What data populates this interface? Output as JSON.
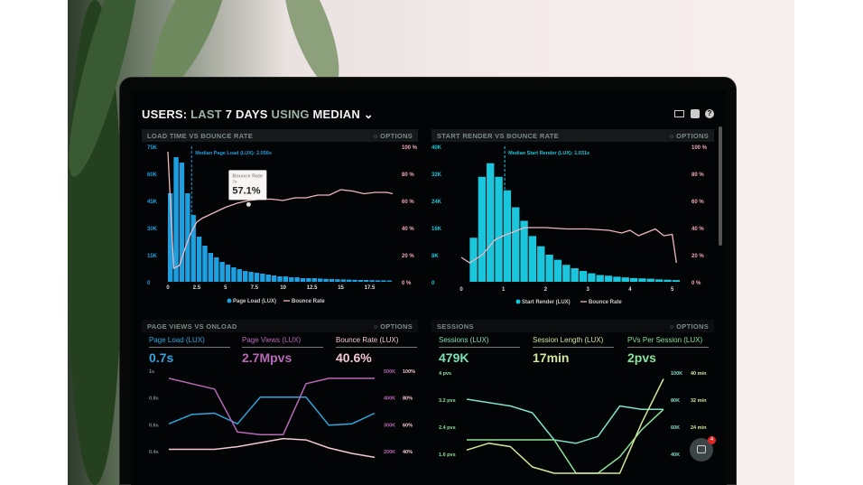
{
  "header": {
    "prefix": "USERS:",
    "last": "LAST",
    "days": "7 DAYS",
    "using": "USING",
    "metric": "MEDIAN",
    "icons": [
      "monitor-icon",
      "share-icon",
      "help-icon"
    ]
  },
  "panels": [
    {
      "title": "LOAD TIME VS BOUNCE RATE",
      "options": "OPTIONS"
    },
    {
      "title": "START RENDER VS BOUNCE RATE",
      "options": "OPTIONS"
    },
    {
      "title": "PAGE VIEWS VS ONLOAD",
      "options": "OPTIONS",
      "kpis": [
        {
          "label": "Page Load (LUX)",
          "value": "0.7s",
          "color": "#2fa6e0"
        },
        {
          "label": "Page Views (LUX)",
          "value": "2.7Mpvs",
          "color": "#b968b8"
        },
        {
          "label": "Bounce Rate (LUX)",
          "value": "40.6%",
          "color": "#f4c8d2"
        }
      ]
    },
    {
      "title": "SESSIONS",
      "options": "OPTIONS",
      "kpis": [
        {
          "label": "Sessions (LUX)",
          "value": "479K",
          "color": "#7fe0b8"
        },
        {
          "label": "Session Length (LUX)",
          "value": "17min",
          "color": "#d6e69a"
        },
        {
          "label": "PVs Per Session (LUX)",
          "value": "2pvs",
          "color": "#8ae39a"
        }
      ]
    }
  ],
  "chat": {
    "badge": "4"
  },
  "chart_data": [
    {
      "type": "bar",
      "title": "LOAD TIME VS BOUNCE RATE",
      "bar_color": "#1e9fe0",
      "line_color": "#f0b8c0",
      "xticks": [
        "0",
        "2.5",
        "5",
        "7.5",
        "10",
        "12.5",
        "15",
        "17.5"
      ],
      "xlim": [
        0,
        19.5
      ],
      "yticks_left": [
        "75K",
        "60K",
        "45K",
        "30K",
        "15K",
        "0"
      ],
      "ylim_left": [
        0,
        75
      ],
      "yticks_right": [
        "100 %",
        "80 %",
        "60 %",
        "40 %",
        "20 %",
        "0 %"
      ],
      "ylim_right": [
        0,
        100
      ],
      "bar_width": 0.5,
      "bars": [
        49,
        69,
        66,
        49,
        37,
        25,
        20,
        16,
        13.5,
        11,
        9.5,
        8,
        7,
        6,
        5.5,
        5,
        4.5,
        4,
        3.5,
        3,
        3,
        2.5,
        2.5,
        2,
        2,
        2,
        1.8,
        1.6,
        1.5,
        1.4,
        1.3,
        1.2,
        1.1,
        1,
        1,
        0.9,
        0.8,
        0.8,
        0.7
      ],
      "line": {
        "x": [
          0,
          0.5,
          1,
          1.5,
          2,
          2.5,
          3,
          4,
          5,
          6,
          7,
          8,
          9,
          10,
          11,
          12,
          13,
          14,
          15,
          16,
          17,
          18,
          19,
          19.5
        ],
        "y": [
          96,
          10,
          12,
          25,
          36,
          44,
          47,
          51,
          55,
          58,
          60,
          61,
          61,
          60,
          62,
          62,
          64,
          64,
          68,
          67,
          65,
          66,
          66,
          65
        ]
      },
      "median": {
        "x": 2.056,
        "label": "Median Page Load (LUX): 2.056s"
      },
      "tooltip": {
        "title": "Bounce Rate",
        "sub": "7s",
        "value": "57.1%",
        "x": 7,
        "y": 57.1
      },
      "legend": [
        "Page Load (LUX)",
        "Bounce Rate"
      ]
    },
    {
      "type": "bar",
      "title": "START RENDER VS BOUNCE RATE",
      "bar_color": "#19c6dc",
      "line_color": "#f0b8c0",
      "xticks": [
        "0",
        "1",
        "2",
        "3",
        "4",
        "5"
      ],
      "xlim": [
        0,
        5.2
      ],
      "yticks_left": [
        "40K",
        "32K",
        "24K",
        "16K",
        "8K",
        "0"
      ],
      "ylim_left": [
        0,
        40
      ],
      "yticks_right": [
        "100 %",
        "80 %",
        "60 %",
        "40 %",
        "20 %",
        "0 %"
      ],
      "ylim_right": [
        0,
        100
      ],
      "bar_width": 0.2,
      "bars": [
        0,
        13,
        31,
        35,
        31,
        27,
        22,
        18,
        13.5,
        10.5,
        8,
        6.5,
        5,
        4,
        3.2,
        2.5,
        2,
        1.8,
        1.5,
        1.3,
        1.1,
        1,
        0.9,
        0.7,
        0.6,
        0.5
      ],
      "line": {
        "x": [
          0,
          0.2,
          0.5,
          0.8,
          1,
          1.5,
          2,
          2.5,
          3,
          3.5,
          3.8,
          4,
          4.2,
          4.6,
          4.8,
          5,
          5.1
        ],
        "y": [
          18,
          14,
          20,
          31,
          34,
          40,
          40,
          39,
          39,
          38,
          36,
          38,
          34,
          39,
          34,
          35,
          14
        ]
      },
      "median": {
        "x": 1.031,
        "label": "Median Start Render (LUX): 1.031s"
      },
      "legend": [
        "Start Render (LUX)",
        "Bounce Rate"
      ]
    },
    {
      "type": "line",
      "title": "PAGE VIEWS VS ONLOAD",
      "yticks_left": [
        "1s",
        "0.8s",
        "0.6s",
        "0.4s"
      ],
      "ylim_left": [
        0.4,
        1
      ],
      "yticks_right_a": [
        "500K",
        "400K",
        "300K",
        "200K"
      ],
      "yticks_right_b": [
        "100%",
        "80%",
        "60%",
        "40%"
      ],
      "series": [
        {
          "name": "Page Load (LUX)",
          "color": "#2fa6e0",
          "axis": "s",
          "values": [
            0.6,
            0.67,
            0.68,
            0.6,
            0.8,
            0.8,
            0.8,
            0.59,
            0.6,
            0.68
          ]
        },
        {
          "name": "Page Views (LUX)",
          "color": "#b968b8",
          "axis": "K",
          "values": [
            470,
            450,
            430,
            270,
            260,
            260,
            450,
            470,
            470,
            470
          ]
        },
        {
          "name": "Bounce Rate (LUX)",
          "color": "#f4c8d2",
          "axis": "%",
          "values": [
            41,
            41,
            41,
            43,
            46,
            49,
            48,
            42,
            38,
            35
          ]
        }
      ]
    },
    {
      "type": "line",
      "title": "SESSIONS",
      "yticks_left": [
        "4 pvs",
        "3.2 pvs",
        "2.4 pvs",
        "1.6 pvs"
      ],
      "ylim_left": [
        1.6,
        4
      ],
      "yticks_right_a": [
        "100K",
        "80K",
        "60K",
        "40K"
      ],
      "yticks_right_b": [
        "40 min",
        "32 min",
        "24 min",
        ""
      ],
      "series": [
        {
          "name": "Sessions (LUX)",
          "color": "#7fe0c8",
          "values": [
            3.2,
            3.1,
            3.0,
            2.8,
            2.0,
            1.9,
            2.1,
            3.0,
            2.9,
            2.9
          ]
        },
        {
          "name": "PVs Per Session (LUX)",
          "color": "#8ae39a",
          "values": [
            2.0,
            2.0,
            2.0,
            2.0,
            2.0,
            1.0,
            0.9,
            1.5,
            2.3,
            2.9
          ]
        },
        {
          "name": "Session Length (LUX)",
          "color": "#d6e69a",
          "values": [
            1.7,
            1.9,
            1.8,
            1.2,
            0.6,
            0.4,
            0.4,
            0.8,
            2.5,
            3.8
          ]
        }
      ]
    }
  ]
}
